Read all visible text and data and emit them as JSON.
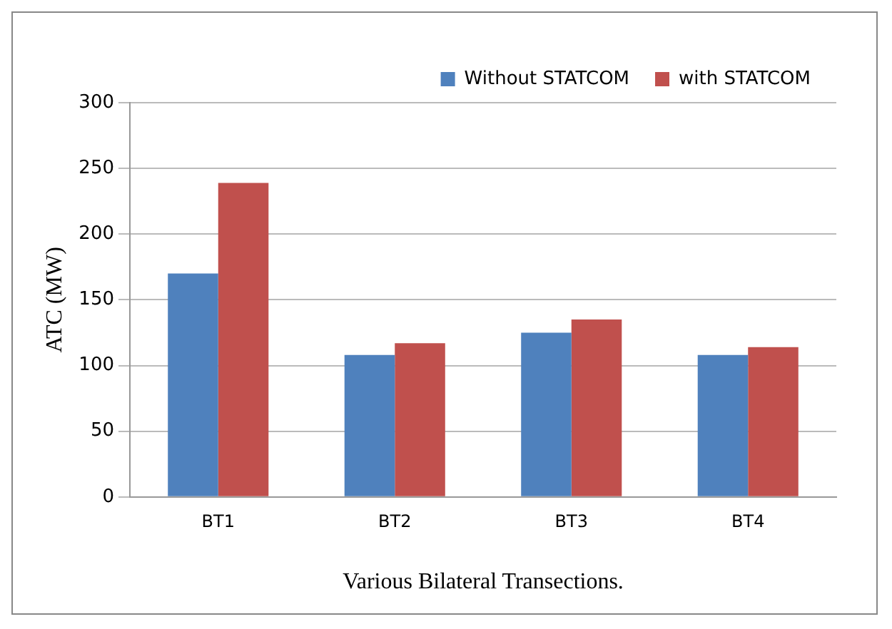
{
  "chart_data": {
    "type": "bar",
    "xlabel": "Various Bilateral Transections.",
    "ylabel": "ATC (MW)",
    "categories": [
      "BT1",
      "BT2",
      "BT3",
      "BT4"
    ],
    "series": [
      {
        "name": "Without STATCOM",
        "color": "#4f81bd",
        "values": [
          170,
          108,
          125,
          108
        ]
      },
      {
        "name": "with STATCOM",
        "color": "#c0504d",
        "values": [
          239,
          117,
          135,
          114
        ]
      }
    ],
    "ylim": [
      0,
      300
    ],
    "yticks": [
      0,
      50,
      100,
      150,
      200,
      250,
      300
    ],
    "grid": "y",
    "legend": "top right"
  }
}
